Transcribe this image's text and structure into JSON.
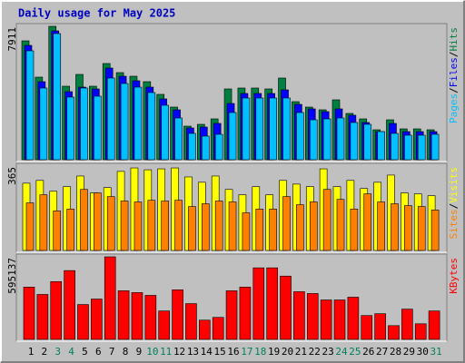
{
  "chart_data": [
    {
      "type": "bar",
      "title": "Daily usage for May 2025",
      "ylim": [
        0,
        7911
      ],
      "legend_separator": "/",
      "series": [
        {
          "name": "Hits",
          "color": "#008040",
          "values": [
            7050,
            4897,
            7911,
            4359,
            5059,
            4359,
            5705,
            5166,
            4951,
            4628,
            3875,
            3121,
            1991,
            2099,
            2422,
            4198,
            4252,
            4252,
            4198,
            4844,
            3444,
            3121,
            2960,
            3552,
            2745,
            2422,
            1776,
            2368,
            1830,
            1830,
            1776
          ]
        },
        {
          "name": "Files",
          "color": "#0000ff",
          "values": [
            6781,
            4628,
            7642,
            4036,
            4305,
            4198,
            5436,
            4951,
            4682,
            4305,
            3606,
            2960,
            1884,
            1937,
            2153,
            3337,
            3929,
            3929,
            3929,
            4144,
            3283,
            3014,
            2852,
            3014,
            2637,
            2207,
            1668,
            2153,
            1668,
            1668,
            1668
          ]
        },
        {
          "name": "Pages",
          "color": "#00c0ff",
          "values": [
            6458,
            4252,
            7481,
            3714,
            4252,
            3767,
            4844,
            4521,
            4305,
            3983,
            3229,
            2476,
            1561,
            1399,
            1507,
            2799,
            3660,
            3660,
            3660,
            3660,
            2799,
            2368,
            2422,
            2476,
            2207,
            2099,
            1668,
            1561,
            1453,
            1453,
            1507
          ]
        }
      ]
    },
    {
      "type": "bar",
      "ylim": [
        0,
        365
      ],
      "legend_separator": "/",
      "series": [
        {
          "name": "Visits",
          "color": "#ffff00",
          "values": [
            291,
            303,
            256,
            276,
            322,
            249,
            272,
            342,
            357,
            349,
            353,
            357,
            318,
            295,
            322,
            264,
            241,
            276,
            241,
            303,
            287,
            276,
            353,
            276,
            303,
            268,
            295,
            326,
            249,
            245,
            237
          ]
        },
        {
          "name": "Sites",
          "color": "#ff8000",
          "values": [
            206,
            241,
            171,
            179,
            264,
            249,
            233,
            214,
            210,
            217,
            214,
            217,
            190,
            202,
            214,
            210,
            163,
            179,
            179,
            233,
            198,
            210,
            264,
            221,
            179,
            245,
            210,
            202,
            194,
            190,
            175
          ]
        }
      ]
    },
    {
      "type": "bar",
      "ylim": [
        0,
        595137
      ],
      "categories": [
        "1",
        "2",
        "3",
        "4",
        "5",
        "6",
        "7",
        "8",
        "9",
        "10",
        "11",
        "12",
        "13",
        "14",
        "15",
        "16",
        "17",
        "18",
        "19",
        "20",
        "21",
        "22",
        "23",
        "24",
        "25",
        "26",
        "27",
        "28",
        "29",
        "30",
        "31"
      ],
      "category_colors": [
        "#000000",
        "#000000",
        "#00805c",
        "#00805c",
        "#000000",
        "#000000",
        "#000000",
        "#000000",
        "#000000",
        "#00805c",
        "#00805c",
        "#000000",
        "#000000",
        "#000000",
        "#000000",
        "#000000",
        "#00805c",
        "#00805c",
        "#000000",
        "#000000",
        "#000000",
        "#000000",
        "#000000",
        "#00805c",
        "#00805c",
        "#000000",
        "#000000",
        "#000000",
        "#000000",
        "#000000",
        "#00805c"
      ],
      "series": [
        {
          "name": "KBytes",
          "color": "#ff0000",
          "values": [
            376941,
            324037,
            416619,
            495975,
            251294,
            290972,
            595137,
            350489,
            337263,
            317424,
            205003,
            357102,
            257907,
            138873,
            158712,
            350489,
            376941,
            515813,
            515813,
            456297,
            343876,
            330650,
            284359,
            284359,
            304198,
            171938,
            185164,
            99195,
            218226,
            112421,
            205003
          ]
        }
      ]
    }
  ]
}
